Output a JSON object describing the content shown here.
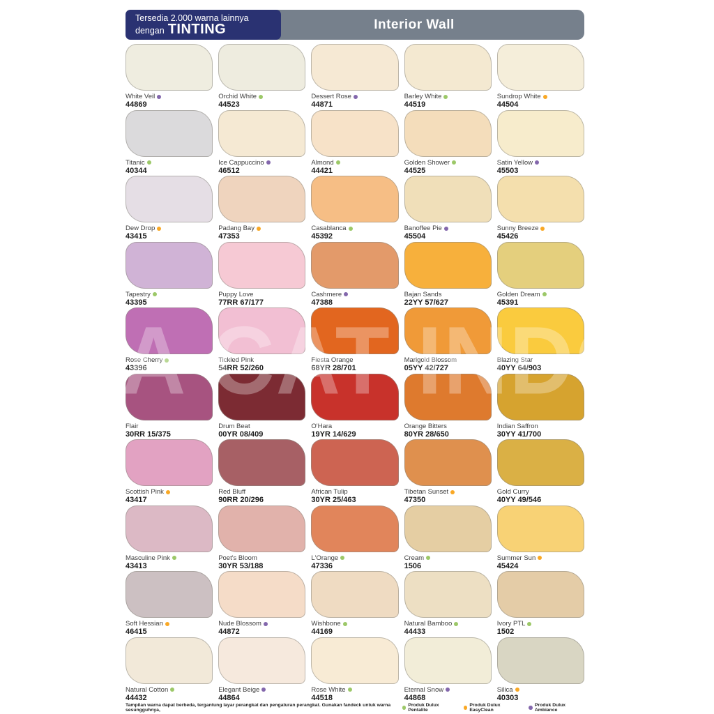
{
  "header": {
    "promo_line1": "Tersedia 2.000 warna lainnya",
    "promo_line2_prefix": "dengan",
    "promo_line2_brand": "TINTING",
    "title": "Interior Wall",
    "navy_color": "#2A3272",
    "gray_color": "#76808C"
  },
  "watermark": "A CAT INDONE",
  "dot_colors": {
    "green": "#9CC868",
    "orange": "#F9A825",
    "purple": "#8367AC"
  },
  "legend": {
    "note": "Tampilan warna dapat berbeda, tergantung layar perangkat dan pengaturan perangkat. Gunakan fandeck untuk warna sesungguhnya,",
    "items": [
      {
        "label": "Produk Dulux Pentalite",
        "dot": "green"
      },
      {
        "label": "Produk Dulux EasyClean",
        "dot": "orange"
      },
      {
        "label": "Produk Dulux Ambiance",
        "dot": "purple"
      }
    ]
  },
  "swatches": [
    {
      "name": "White Veil",
      "code": "44869",
      "dot": "purple",
      "color": "#EFEDE0"
    },
    {
      "name": "Orchid White",
      "code": "44523",
      "dot": "green",
      "color": "#EEECDF"
    },
    {
      "name": "Dessert Rose",
      "code": "44871",
      "dot": "purple",
      "color": "#F6E9D4"
    },
    {
      "name": "Barley White",
      "code": "44519",
      "dot": "green",
      "color": "#F4E9D1"
    },
    {
      "name": "Sundrop White",
      "code": "44504",
      "dot": "orange",
      "color": "#F5EEDA"
    },
    {
      "name": "Titanic",
      "code": "40344",
      "dot": "green",
      "color": "#DBDADC"
    },
    {
      "name": "Ice Cappuccino",
      "code": "46512",
      "dot": "purple",
      "color": "#F5E9D3"
    },
    {
      "name": "Almond",
      "code": "44421",
      "dot": "green",
      "color": "#F7E2C8"
    },
    {
      "name": "Golden Shower",
      "code": "44525",
      "dot": "green",
      "color": "#F4DDBB"
    },
    {
      "name": "Satin Yellow",
      "code": "45503",
      "dot": "purple",
      "color": "#F7ECCC"
    },
    {
      "name": "Dew Drop",
      "code": "43415",
      "dot": "orange",
      "color": "#E5DEE5"
    },
    {
      "name": "Padang Bay",
      "code": "47353",
      "dot": "orange",
      "color": "#EFD4BE"
    },
    {
      "name": "Casablanca",
      "code": "45392",
      "dot": "green",
      "color": "#F6BE85"
    },
    {
      "name": "Banoffee Pie",
      "code": "45504",
      "dot": "purple",
      "color": "#F0DFB9"
    },
    {
      "name": "Sunny Breeze",
      "code": "45426",
      "dot": "orange",
      "color": "#F4DFAD"
    },
    {
      "name": "Tapestry",
      "code": "43395",
      "dot": "green",
      "color": "#D0B3D6"
    },
    {
      "name": "Puppy Love",
      "code": "77RR 67/177",
      "dot": null,
      "color": "#F6C9D4"
    },
    {
      "name": "Cashmere",
      "code": "47388",
      "dot": "purple",
      "color": "#E39A6A"
    },
    {
      "name": "Bajan Sands",
      "code": "22YY 57/627",
      "dot": null,
      "color": "#F7B03C"
    },
    {
      "name": "Golden Dream",
      "code": "45391",
      "dot": "green",
      "color": "#E4CF7D"
    },
    {
      "name": "Rose Cherry",
      "code": "43396",
      "dot": "green",
      "color": "#BF6FB4"
    },
    {
      "name": "Tickled Pink",
      "code": "54RR 52/260",
      "dot": null,
      "color": "#F2BFD3"
    },
    {
      "name": "Fiesta Orange",
      "code": "68YR 28/701",
      "dot": null,
      "color": "#E2661F"
    },
    {
      "name": "Marigold Blossom",
      "code": "05YY 42/727",
      "dot": null,
      "color": "#F09A38"
    },
    {
      "name": "Blazing Star",
      "code": "40YY 64/903",
      "dot": null,
      "color": "#FACB3E"
    },
    {
      "name": "Flair",
      "code": "30RR 15/375",
      "dot": null,
      "color": "#A75380"
    },
    {
      "name": "Drum Beat",
      "code": "00YR 08/409",
      "dot": null,
      "color": "#7C2B33"
    },
    {
      "name": "O'Hara",
      "code": "19YR 14/629",
      "dot": null,
      "color": "#C8322B"
    },
    {
      "name": "Orange Bitters",
      "code": "80YR 28/650",
      "dot": null,
      "color": "#DE7A2E"
    },
    {
      "name": "Indian Saffron",
      "code": "30YY 41/700",
      "dot": null,
      "color": "#D6A32F"
    },
    {
      "name": "Scottish Pink",
      "code": "43417",
      "dot": "orange",
      "color": "#E2A2C2"
    },
    {
      "name": "Red Bluff",
      "code": "90RR 20/296",
      "dot": null,
      "color": "#A76065"
    },
    {
      "name": "African Tulip",
      "code": "30YR 25/463",
      "dot": null,
      "color": "#CD6452"
    },
    {
      "name": "Tibetan Sunset",
      "code": "47350",
      "dot": "orange",
      "color": "#DF904E"
    },
    {
      "name": "Gold Curry",
      "code": "40YY 49/546",
      "dot": null,
      "color": "#DAB045"
    },
    {
      "name": "Masculine Pink",
      "code": "43413",
      "dot": "green",
      "color": "#DCB9C5"
    },
    {
      "name": "Poet's Bloom",
      "code": "30YR 53/188",
      "dot": null,
      "color": "#E1B2AB"
    },
    {
      "name": "L'Orange",
      "code": "47336",
      "dot": "green",
      "color": "#E1855B"
    },
    {
      "name": "Cream",
      "code": "1506",
      "dot": "green",
      "color": "#E5CEA3"
    },
    {
      "name": "Summer Sun",
      "code": "45424",
      "dot": "orange",
      "color": "#F8D275"
    },
    {
      "name": "Soft Hessian",
      "code": "46415",
      "dot": "orange",
      "color": "#CCC0C2"
    },
    {
      "name": "Nude Blossom",
      "code": "44872",
      "dot": "purple",
      "color": "#F5DCC8"
    },
    {
      "name": "Wishbone",
      "code": "44169",
      "dot": "green",
      "color": "#EFDBC2"
    },
    {
      "name": "Natural Bamboo",
      "code": "44433",
      "dot": "green",
      "color": "#EDDFC3"
    },
    {
      "name": "Ivory PTL",
      "code": "1502",
      "dot": "green",
      "color": "#E4CCA7"
    },
    {
      "name": "Natural Cotton",
      "code": "44432",
      "dot": "green",
      "color": "#F2E9D9"
    },
    {
      "name": "Elegant Beige",
      "code": "44864",
      "dot": "purple",
      "color": "#F6E9DD"
    },
    {
      "name": "Rose White",
      "code": "44518",
      "dot": "green",
      "color": "#F8EBD5"
    },
    {
      "name": "Eternal Snow",
      "code": "44868",
      "dot": "purple",
      "color": "#F2EDD8"
    },
    {
      "name": "Silica",
      "code": "40303",
      "dot": "orange",
      "color": "#D9D6C3"
    }
  ]
}
